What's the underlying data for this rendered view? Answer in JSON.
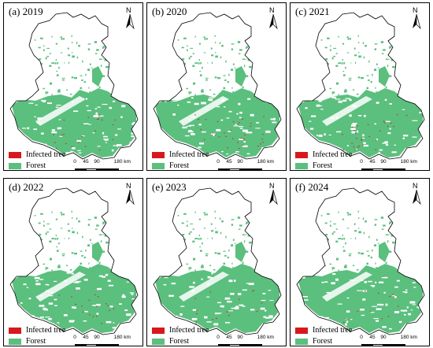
{
  "legend": {
    "infected_label": "Infected tree",
    "forest_label": "Forest",
    "infected_color": "#d7191c",
    "forest_color": "#5bbf7e"
  },
  "north_arrow": {
    "label": "N"
  },
  "scale_bar": {
    "ticks": [
      "0",
      "45",
      "90",
      "180 km"
    ]
  },
  "colors": {
    "outline": "#000000",
    "background": "#ffffff"
  },
  "panels": [
    {
      "title": "(a) 2019",
      "infected_level": 0.35
    },
    {
      "title": "(b) 2020",
      "infected_level": 0.55
    },
    {
      "title": "(c) 2021",
      "infected_level": 0.45
    },
    {
      "title": "(d) 2022",
      "infected_level": 0.3
    },
    {
      "title": "(e) 2023",
      "infected_level": 0.25
    },
    {
      "title": "(f) 2024",
      "infected_level": 0.2
    }
  ]
}
